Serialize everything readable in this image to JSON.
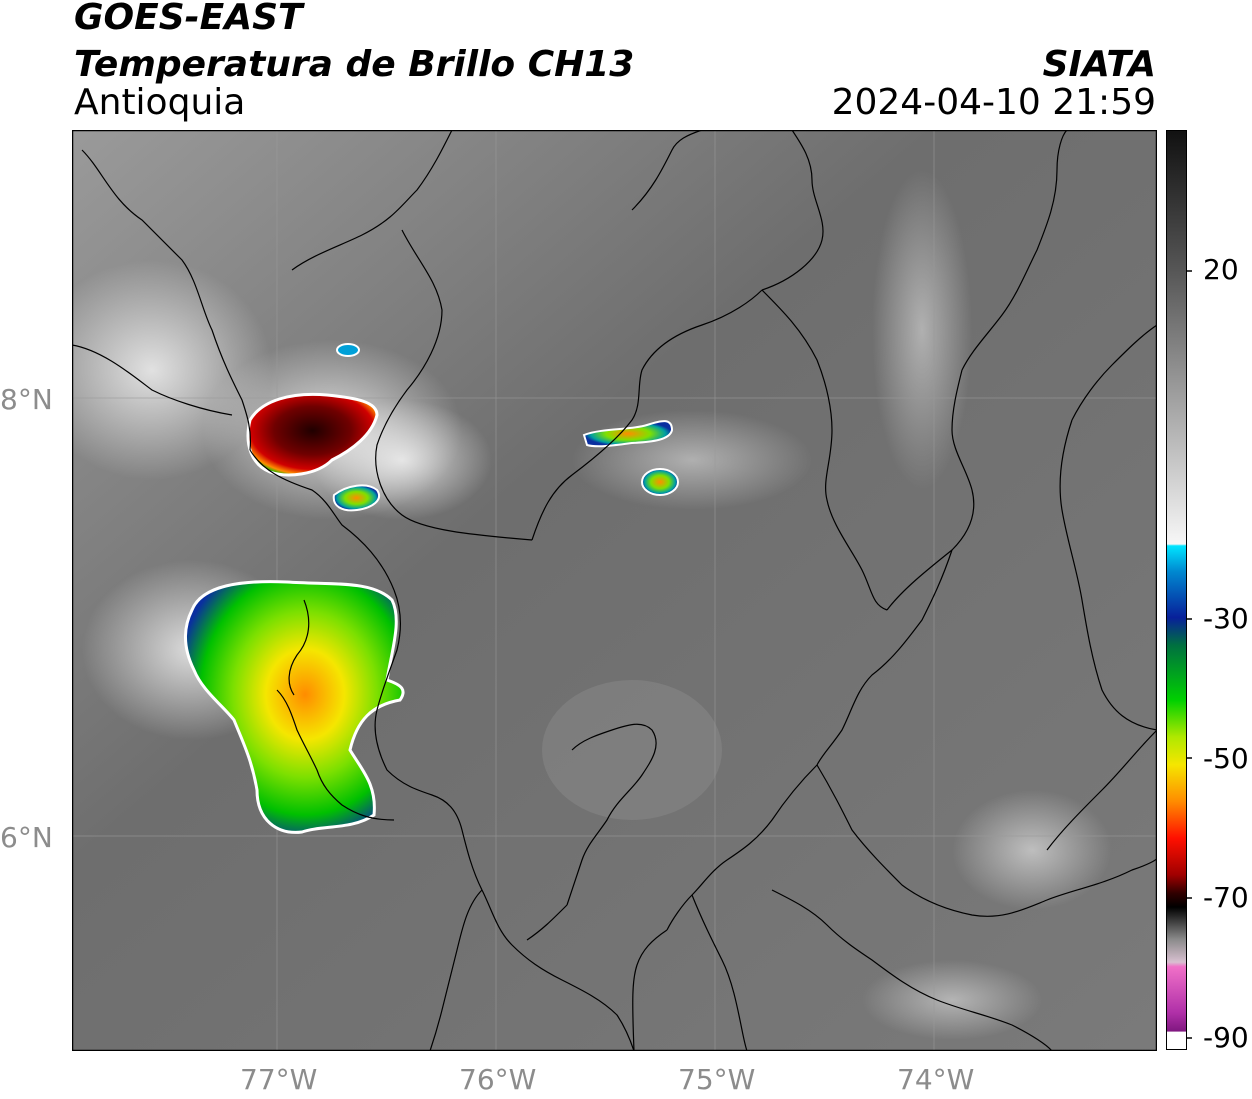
{
  "header": {
    "satellite": "GOES-EAST",
    "product": "Temperatura de Brillo CH13",
    "region": "Antioquia",
    "brand": "SIATA",
    "timestamp": "2024-04-10 21:59"
  },
  "map": {
    "lon_labels": [
      "77°W",
      "76°W",
      "75°W",
      "74°W"
    ],
    "lat_labels": [
      "8°N",
      "6°N"
    ]
  },
  "colorbar": {
    "labels": [
      "20",
      "-30",
      "-50",
      "-70",
      "-90"
    ],
    "colors": {
      "gray_dark": "#1e1e1e",
      "gray_light": "#f0f0f0",
      "cyan": "#00e5ff",
      "blue": "#0a2fa0",
      "green": "#00c800",
      "yellow": "#f5e600",
      "orange": "#ff8c00",
      "red": "#e00000",
      "dark_red": "#600000",
      "black": "#000000",
      "pink": "#e060c0",
      "purple": "#8a1c8a"
    }
  }
}
